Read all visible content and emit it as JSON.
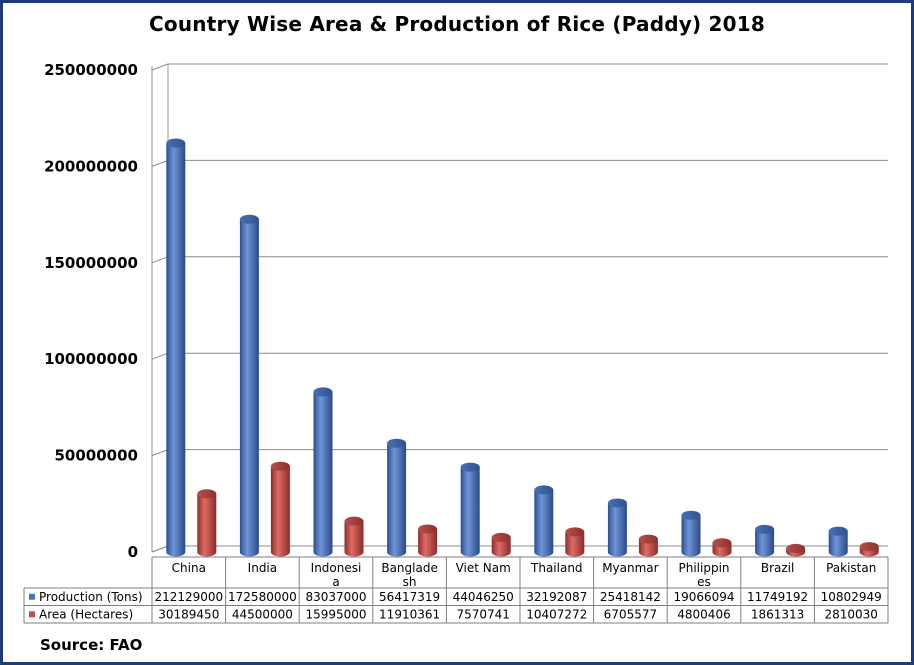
{
  "chart_data": {
    "type": "bar",
    "title": "Country Wise Area & Production of Rice (Paddy) 2018",
    "source": "Source: FAO",
    "ylim": [
      0,
      250000000
    ],
    "yticks": [
      "0",
      "50000000",
      "100000000",
      "150000000",
      "200000000",
      "250000000"
    ],
    "categories": [
      [
        "China"
      ],
      [
        "India"
      ],
      [
        "Indonesi",
        "a"
      ],
      [
        "Banglade",
        "sh"
      ],
      [
        "Viet Nam"
      ],
      [
        "Thailand"
      ],
      [
        "Myanmar"
      ],
      [
        "Philippin",
        "es"
      ],
      [
        "Brazil"
      ],
      [
        "Pakistan"
      ]
    ],
    "series": [
      {
        "name": "Production (Tons)",
        "color": "#4472c4",
        "values": [
          212129000,
          172580000,
          83037000,
          56417319,
          44046250,
          32192087,
          25418142,
          19066094,
          11749192,
          10802949
        ]
      },
      {
        "name": "Area (Hectares)",
        "color": "#c0504d",
        "values": [
          30189450,
          44500000,
          15995000,
          11910361,
          7570741,
          10407272,
          6705577,
          4800406,
          1861313,
          2810030
        ]
      }
    ],
    "grid": true,
    "legend": "data-table"
  }
}
